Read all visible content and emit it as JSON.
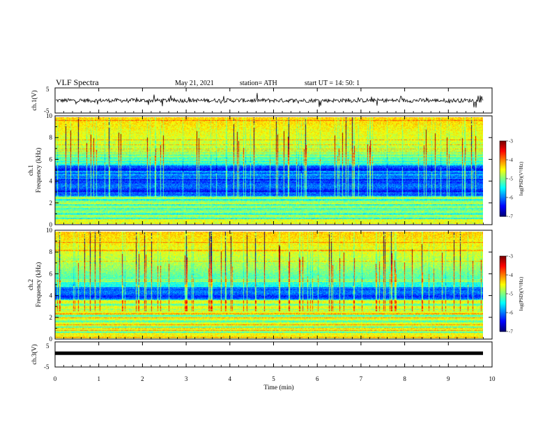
{
  "header": {
    "title": "VLF Spectra",
    "date": "May 21, 2021",
    "station": "station= ATH",
    "start": "start UT =   14: 50: 1"
  },
  "colors": {
    "spectrogram_low": "#000070",
    "spectrogram_high": "#ff0000",
    "trace": "#000000"
  },
  "chart_data": [
    {
      "type": "line",
      "ylabel": "ch.1(V)",
      "ylim": [
        -5,
        5
      ],
      "y_tick_labels": [
        "5",
        "-5"
      ],
      "description_values": {
        "baseline": 0.0,
        "amplitude_range": [
          -2,
          2
        ]
      }
    },
    {
      "type": "heatmap",
      "ylabel_1": "ch.1",
      "ylabel_2": "Frequency (kHz)",
      "ylim": [
        0,
        10
      ],
      "y_tick_labels": [
        "0",
        "2",
        "4",
        "6",
        "8",
        "10"
      ],
      "colorbar": {
        "label": "log(PSD)(V²/Hz)",
        "range": [
          -7,
          -3
        ],
        "tick_labels": [
          "-3",
          "-4",
          "-5",
          "-6",
          "-7"
        ]
      }
    },
    {
      "type": "heatmap",
      "ylabel_1": "ch.2",
      "ylabel_2": "Frequency (kHz)",
      "ylim": [
        0,
        10
      ],
      "y_tick_labels": [
        "0",
        "2",
        "4",
        "6",
        "8",
        "10"
      ],
      "colorbar": {
        "label": "log(PSD)(V²/Hz)",
        "range": [
          -7,
          -3
        ],
        "tick_labels": [
          "-3",
          "-4",
          "-5",
          "-6",
          "-7"
        ]
      }
    },
    {
      "type": "line",
      "ylabel": "ch.3(V)",
      "ylim": [
        -5,
        5
      ],
      "y_tick_labels": [
        "5",
        "-5"
      ],
      "description_values": {
        "constant_level": 0.5
      }
    }
  ],
  "xaxis": {
    "label": "Time (min)",
    "xlim": [
      0,
      10
    ],
    "tick_labels": [
      "0",
      "1",
      "2",
      "3",
      "4",
      "5",
      "6",
      "7",
      "8",
      "9",
      "10"
    ]
  }
}
